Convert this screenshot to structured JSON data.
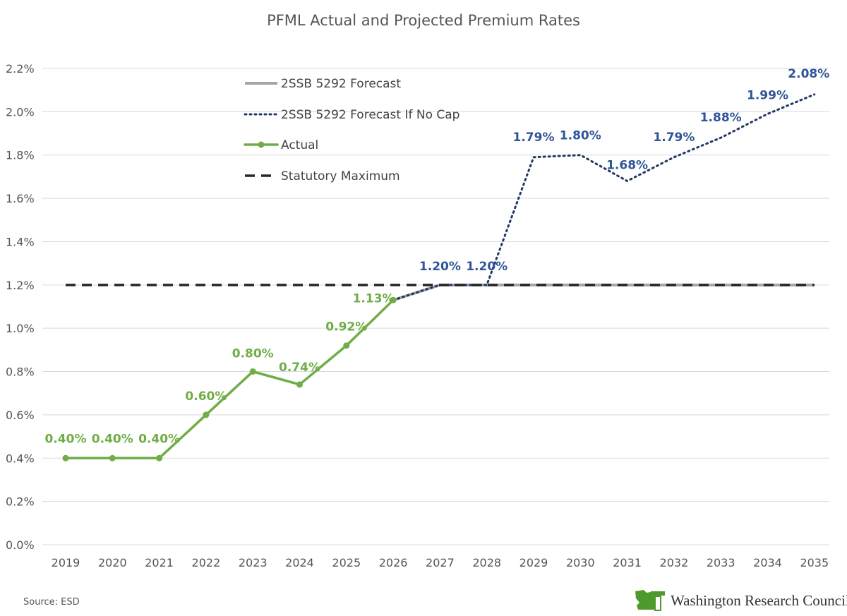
{
  "chart_data": {
    "type": "line",
    "title": "PFML Actual and Projected Premium Rates",
    "xlabel": "",
    "ylabel": "",
    "categories": [
      "2019",
      "2020",
      "2021",
      "2022",
      "2023",
      "2024",
      "2025",
      "2026",
      "2027",
      "2028",
      "2029",
      "2030",
      "2031",
      "2032",
      "2033",
      "2034",
      "2035"
    ],
    "ylim": [
      0,
      2.2
    ],
    "yticks": [
      0.0,
      0.2,
      0.4,
      0.6,
      0.8,
      1.0,
      1.2,
      1.4,
      1.6,
      1.8,
      2.0,
      2.2
    ],
    "ytick_labels": [
      "0.0%",
      "0.2%",
      "0.4%",
      "0.6%",
      "0.8%",
      "1.0%",
      "1.2%",
      "1.4%",
      "1.6%",
      "1.8%",
      "2.0%",
      "2.2%"
    ],
    "grid": true,
    "legend_position": "top-center",
    "series": [
      {
        "name": "2SSB 5292 Forecast",
        "style": "solid",
        "color": "#a6a6a6",
        "values": [
          null,
          null,
          null,
          null,
          null,
          null,
          null,
          1.13,
          1.2,
          1.2,
          1.2,
          1.2,
          1.2,
          1.2,
          1.2,
          1.2,
          1.2
        ]
      },
      {
        "name": "2SSB 5292 Forecast If No Cap",
        "style": "dotted",
        "color": "#1f3864",
        "values": [
          null,
          null,
          null,
          null,
          null,
          null,
          null,
          1.13,
          1.2,
          1.2,
          1.79,
          1.8,
          1.68,
          1.79,
          1.88,
          1.99,
          2.08
        ],
        "labels": [
          null,
          null,
          null,
          null,
          null,
          null,
          null,
          null,
          "1.20%",
          "1.20%",
          "1.79%",
          "1.80%",
          "1.68%",
          "1.79%",
          "1.88%",
          "1.99%",
          "2.08%"
        ]
      },
      {
        "name": "Actual",
        "style": "solid-markers",
        "color": "#70ad47",
        "values": [
          0.4,
          0.4,
          0.4,
          0.6,
          0.8,
          0.74,
          0.92,
          1.13,
          null,
          null,
          null,
          null,
          null,
          null,
          null,
          null,
          null
        ],
        "labels": [
          "0.40%",
          "0.40%",
          "0.40%",
          "0.60%",
          "0.80%",
          "0.74%",
          "0.92%",
          "1.13%",
          null,
          null,
          null,
          null,
          null,
          null,
          null,
          null,
          null
        ]
      },
      {
        "name": "Statutory Maximum",
        "style": "dashed",
        "color": "#262626",
        "values": [
          1.2,
          1.2,
          1.2,
          1.2,
          1.2,
          1.2,
          1.2,
          1.2,
          1.2,
          1.2,
          1.2,
          1.2,
          1.2,
          1.2,
          1.2,
          1.2,
          1.2
        ]
      }
    ]
  },
  "footer": {
    "source": "Source: ESD",
    "logo_text": "Washington Research Council"
  },
  "colors": {
    "forecast": "#a6a6a6",
    "no_cap": "#1f3864",
    "no_cap_label": "#2f5597",
    "actual": "#70ad47",
    "statutory": "#262626",
    "grid": "#d9d9d9"
  }
}
